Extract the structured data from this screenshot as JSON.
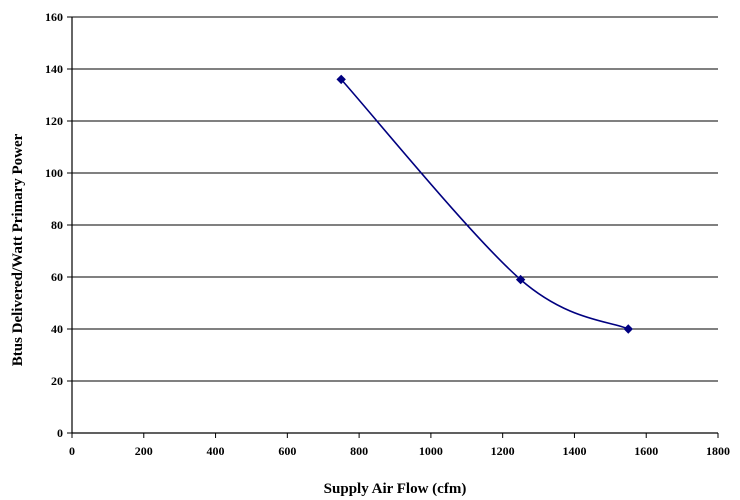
{
  "chart_data": {
    "type": "line",
    "title": "",
    "xlabel": "Supply Air Flow (cfm)",
    "ylabel": "Btus Delivered/Watt Primary Power",
    "xlim": [
      0,
      1800
    ],
    "ylim": [
      0,
      160
    ],
    "xticks": [
      0,
      200,
      400,
      600,
      800,
      1000,
      1200,
      1400,
      1600,
      1800
    ],
    "yticks": [
      0,
      20,
      40,
      60,
      80,
      100,
      120,
      140,
      160
    ],
    "grid": "horizontal",
    "smooth": true,
    "series": [
      {
        "color": "#000080",
        "marker": "diamond",
        "x": [
          750,
          1250,
          1550
        ],
        "y": [
          136,
          59,
          40
        ]
      }
    ]
  }
}
